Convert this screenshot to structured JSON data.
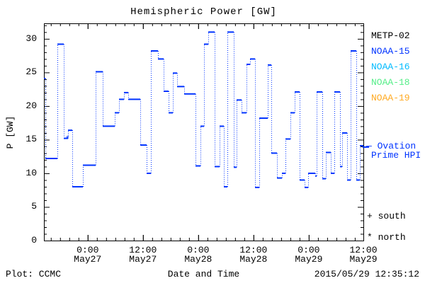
{
  "title": "Hemispheric Power [GW]",
  "colors": {
    "background": "#ffffff",
    "axis": "#000000",
    "data_line": "#0033ff"
  },
  "y_axis": {
    "label": "P [GW]",
    "tick_values": [
      0,
      5,
      10,
      15,
      20,
      25,
      30
    ],
    "minor_step": 1,
    "max_value": 32.3
  },
  "x_axis": {
    "label": "Date and Time",
    "ticks": [
      {
        "time": "0:00",
        "date": "May27",
        "frac": 0.137
      },
      {
        "time": "12:00",
        "date": "May27",
        "frac": 0.31
      },
      {
        "time": "0:00",
        "date": "May28",
        "frac": 0.483
      },
      {
        "time": "12:00",
        "date": "May28",
        "frac": 0.656
      },
      {
        "time": "0:00",
        "date": "May29",
        "frac": 0.829
      },
      {
        "time": "12:00",
        "date": "May29",
        "frac": 1.0
      }
    ],
    "minor_ticks_per_major": 6
  },
  "legend": {
    "satellites": [
      {
        "label": "METP-02",
        "color": "#000000"
      },
      {
        "label": "NOAA-15",
        "color": "#0033ff"
      },
      {
        "label": "NOAA-16",
        "color": "#00bbff"
      },
      {
        "label": "NOAA-18",
        "color": "#55ee88"
      },
      {
        "label": "NOAA-19",
        "color": "#ffaa22"
      }
    ],
    "ovation": {
      "line1": "— Ovation",
      "line2": "Prime HPI",
      "color": "#0033ff"
    },
    "hemisphere_markers": [
      {
        "symbol": "+",
        "label": "south"
      },
      {
        "symbol": "*",
        "label": "north"
      }
    ]
  },
  "footer": {
    "left": "Plot: CCMC",
    "right": "2015/05/29 12:35:12"
  },
  "chart_data": {
    "type": "line",
    "subtype": "step-histogram, solid horizontal steps with dotted vertical connectors",
    "series": "Ovation Prime HPI",
    "unit": "GW",
    "color": "#0033ff",
    "ylim": [
      0,
      32.3
    ],
    "x_encoding": "fraction of x-axis width (major ticks every 12 h)",
    "segments": [
      [
        0.0,
        0.0044,
        24.1
      ],
      [
        0.0044,
        0.0421,
        12.2
      ],
      [
        0.0421,
        0.0621,
        29.2
      ],
      [
        0.0621,
        0.0754,
        15.2
      ],
      [
        0.0754,
        0.0887,
        16.4
      ],
      [
        0.0887,
        0.1219,
        8.0
      ],
      [
        0.1219,
        0.1619,
        11.2
      ],
      [
        0.1619,
        0.184,
        25.1
      ],
      [
        0.184,
        0.2217,
        17.0
      ],
      [
        0.2217,
        0.235,
        19.0
      ],
      [
        0.235,
        0.2506,
        21.0
      ],
      [
        0.2506,
        0.2639,
        22.0
      ],
      [
        0.2639,
        0.3016,
        21.0
      ],
      [
        0.3016,
        0.3215,
        14.2
      ],
      [
        0.3215,
        0.3348,
        10.0
      ],
      [
        0.3348,
        0.357,
        28.2
      ],
      [
        0.357,
        0.3747,
        27.0
      ],
      [
        0.3747,
        0.3903,
        22.2
      ],
      [
        0.3903,
        0.4036,
        19.0
      ],
      [
        0.4036,
        0.4169,
        24.9
      ],
      [
        0.4169,
        0.439,
        22.9
      ],
      [
        0.439,
        0.4745,
        21.8
      ],
      [
        0.4745,
        0.49,
        11.1
      ],
      [
        0.49,
        0.5011,
        17.0
      ],
      [
        0.5011,
        0.5144,
        29.2
      ],
      [
        0.5144,
        0.5344,
        31.0
      ],
      [
        0.5344,
        0.5499,
        11.0
      ],
      [
        0.5499,
        0.5632,
        17.0
      ],
      [
        0.5632,
        0.5743,
        8.0
      ],
      [
        0.5743,
        0.5942,
        31.0
      ],
      [
        0.5942,
        0.6031,
        10.9
      ],
      [
        0.6031,
        0.6186,
        20.9
      ],
      [
        0.6186,
        0.6341,
        19.0
      ],
      [
        0.6341,
        0.6452,
        26.2
      ],
      [
        0.6452,
        0.6608,
        27.0
      ],
      [
        0.6608,
        0.6741,
        7.9
      ],
      [
        0.6741,
        0.7007,
        18.2
      ],
      [
        0.7007,
        0.7117,
        26.1
      ],
      [
        0.7117,
        0.7295,
        13.0
      ],
      [
        0.7295,
        0.745,
        9.3
      ],
      [
        0.745,
        0.7561,
        10.0
      ],
      [
        0.7561,
        0.7716,
        15.1
      ],
      [
        0.7716,
        0.7849,
        19.0
      ],
      [
        0.7849,
        0.8004,
        22.1
      ],
      [
        0.8004,
        0.816,
        9.0
      ],
      [
        0.816,
        0.8271,
        7.9
      ],
      [
        0.8271,
        0.8492,
        10.0
      ],
      [
        0.8492,
        0.8537,
        9.6
      ],
      [
        0.8537,
        0.8714,
        22.1
      ],
      [
        0.8714,
        0.8825,
        9.2
      ],
      [
        0.8825,
        0.898,
        13.1
      ],
      [
        0.898,
        0.9091,
        10.0
      ],
      [
        0.9091,
        0.9268,
        22.1
      ],
      [
        0.9268,
        0.9335,
        11.0
      ],
      [
        0.9335,
        0.949,
        16.0
      ],
      [
        0.949,
        0.9601,
        9.0
      ],
      [
        0.9601,
        0.9778,
        28.2
      ],
      [
        0.9778,
        0.9889,
        9.0
      ],
      [
        0.9889,
        1.0,
        14.1
      ]
    ],
    "ovation_latest_marker": {
      "x_frac": 1.0,
      "gw": 13.9
    },
    "point_markers": [
      {
        "x_frac": 0.075,
        "gw": 15.4,
        "symbol": "*"
      }
    ]
  }
}
